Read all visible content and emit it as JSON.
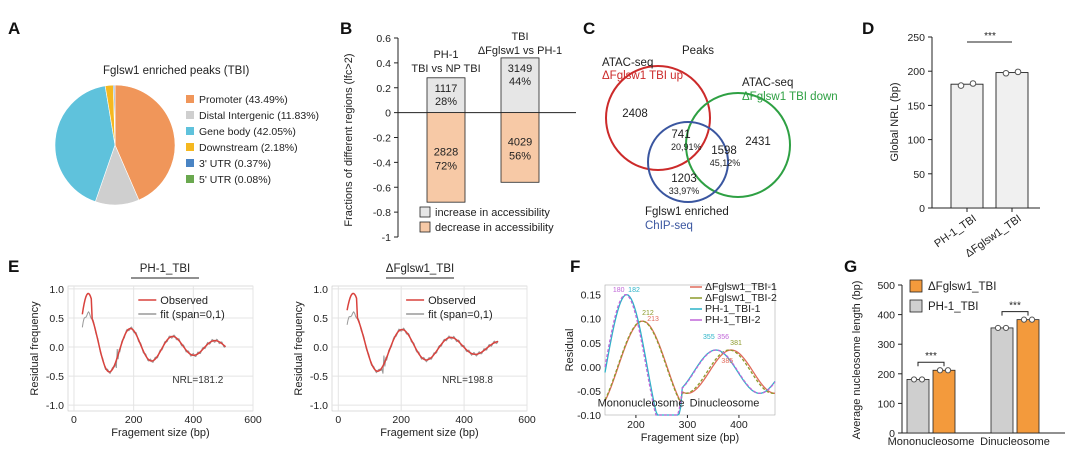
{
  "panels": {
    "A": "A",
    "B": "B",
    "C": "C",
    "D": "D",
    "E": "E",
    "F": "F",
    "G": "G"
  },
  "chart_data": [
    {
      "id": "A",
      "type": "pie",
      "title": "Fglsw1 enriched peaks (TBI)",
      "slices": [
        {
          "label": "Promoter (43.49%)",
          "value": 43.49,
          "color": "#f0965a"
        },
        {
          "label": "Distal Intergenic (11.83%)",
          "value": 11.83,
          "color": "#cfcfcf"
        },
        {
          "label": "Gene body (42.05%)",
          "value": 42.05,
          "color": "#5fc2dc"
        },
        {
          "label": "Downstream (2.18%)",
          "value": 2.18,
          "color": "#f5b820"
        },
        {
          "label": "3' UTR (0.37%)",
          "value": 0.37,
          "color": "#4a84c4"
        },
        {
          "label": "5' UTR (0.08%)",
          "value": 0.08,
          "color": "#6aa84f"
        }
      ]
    },
    {
      "id": "B",
      "type": "bar",
      "ylabel": "Fractions of different regions (lfc>2)",
      "ylim": [
        -1,
        0.6
      ],
      "yticks": [
        "0.6",
        "0.4",
        "0.2",
        "0",
        "-0.2",
        "-0.4",
        "-0.6",
        "-0.8",
        "-1"
      ],
      "groups": [
        {
          "label1": "PH-1",
          "label2": "TBI vs NP TBI",
          "label3": "",
          "up": 0.28,
          "down": -0.72,
          "up_n": "1117",
          "up_pct": "28%",
          "down_n": "2828",
          "down_pct": "72%"
        },
        {
          "label1": "TBI",
          "label2": "ΔFglsw1 vs PH-1",
          "label3": "",
          "up": 0.44,
          "down": -0.56,
          "up_n": "3149",
          "up_pct": "44%",
          "down_n": "4029",
          "down_pct": "56%"
        }
      ],
      "legend": [
        {
          "label": "increase in accessibility",
          "color": "#e6e6e6"
        },
        {
          "label": "decrease in accessibility",
          "color": "#f7c9a6"
        }
      ]
    },
    {
      "id": "C",
      "type": "venn",
      "title": "Peaks",
      "set1": {
        "line1": "ATAC-seq",
        "line2": "ΔFglsw1 TBI up",
        "color": "#cc2a2a"
      },
      "set2": {
        "line1": "ATAC-seq",
        "line2": "ΔFglsw1 TBI down",
        "color": "#2ea043"
      },
      "set3": {
        "line1": "Fglsw1 enriched",
        "line2": "ChIP-seq",
        "color": "#3a56a0"
      },
      "regions": {
        "only1": "2408",
        "only2": "2431",
        "only3": "1203",
        "only3_pct": "33,97%",
        "r13": "741",
        "r13_pct": "20,91%",
        "r23": "1598",
        "r23_pct": "45,12%"
      }
    },
    {
      "id": "D",
      "type": "bar",
      "ylabel": "Global NRL (bp)",
      "ylim": [
        0,
        250
      ],
      "yticks": [
        "0",
        "50",
        "100",
        "150",
        "200",
        "250"
      ],
      "categories": [
        "PH-1_TBI",
        "ΔFglsw1_TBI"
      ],
      "values": [
        181,
        198
      ],
      "points": [
        [
          179,
          182
        ],
        [
          197,
          199
        ]
      ],
      "significance": "***"
    },
    {
      "id": "E1",
      "type": "line",
      "title": "PH-1_TBI",
      "xlabel": "Fragement size (bp)",
      "ylabel": "Residual frequency",
      "xlim": [
        -20,
        600
      ],
      "ylim": [
        -1.1,
        1.05
      ],
      "xticks": [
        "0",
        "200",
        "400",
        "600"
      ],
      "yticks": [
        "1.0",
        "0.5",
        "0.0",
        "-0.5",
        "-1.0"
      ],
      "legend": [
        "Observed",
        "fit (span=0,1)"
      ],
      "annotation": "NRL=181.2",
      "nrl": 181.2
    },
    {
      "id": "E2",
      "type": "line",
      "title": "ΔFglsw1_TBI",
      "xlabel": "Fragement size (bp)",
      "ylabel": "Residual frequency",
      "xlim": [
        -20,
        600
      ],
      "ylim": [
        -1.1,
        1.05
      ],
      "xticks": [
        "0",
        "200",
        "400",
        "600"
      ],
      "yticks": [
        "1.0",
        "0.5",
        "0.0",
        "-0.5",
        "-1.0"
      ],
      "legend": [
        "Observed",
        "fit (span=0,1)"
      ],
      "annotation": "NRL=198.8",
      "nrl": 198.8
    },
    {
      "id": "F",
      "type": "line",
      "xlabel": "Fragement size (bp)",
      "ylabel": "Residual",
      "xlim": [
        140,
        470
      ],
      "ylim": [
        -0.1,
        0.17
      ],
      "xticks": [
        "200",
        "300",
        "400"
      ],
      "yticks": [
        "0.15",
        "0.10",
        "0.05",
        "0.00",
        "-0.05",
        "-0.10"
      ],
      "series": [
        {
          "name": "ΔFglsw1_TBI-1",
          "color": "#e06a5a",
          "peak1": 213,
          "peak2": 385
        },
        {
          "name": "ΔFglsw1_TBI-2",
          "color": "#8c9a2a",
          "peak1": 212,
          "peak2": 381
        },
        {
          "name": "PH-1_TBI-1",
          "color": "#2bb3c8",
          "peak1": 182,
          "peak2": 355
        },
        {
          "name": "PH-1_TBI-2",
          "color": "#c066d8",
          "peak1": 180,
          "peak2": 356
        }
      ],
      "peak_labels": [
        "180",
        "182",
        "212",
        "213",
        "355",
        "356",
        "381",
        "385"
      ],
      "region_labels": [
        "Mononucleosome",
        "Dinucleosome"
      ]
    },
    {
      "id": "G",
      "type": "bar",
      "ylabel": "Average nucleosome length (bp)",
      "ylim": [
        0,
        500
      ],
      "yticks": [
        "0",
        "100",
        "200",
        "300",
        "400",
        "500"
      ],
      "categories": [
        "Mononucleosome",
        "Dinucleosome"
      ],
      "series": [
        {
          "name": "PH-1_TBI",
          "values": [
            181,
            355
          ],
          "color": "#cfcfcf"
        },
        {
          "name": "ΔFglsw1_TBI",
          "values": [
            212,
            383
          ],
          "color": "#f39a3c"
        }
      ],
      "significance": [
        "***",
        "***"
      ]
    }
  ]
}
